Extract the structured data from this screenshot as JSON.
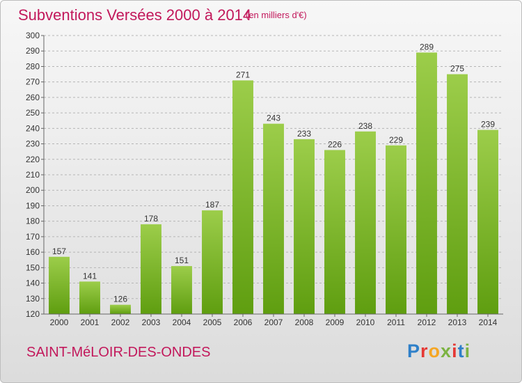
{
  "title": "Subventions Versées 2000 à 2014",
  "subtitle": "(en milliers d'€)",
  "commune": "SAINT-MéLOIR-DES-ONDES",
  "logo": {
    "letters": [
      "P",
      "r",
      "o",
      "x",
      "i",
      "t",
      "i"
    ],
    "colors": [
      "#2f80c9",
      "#e53935",
      "#f5a623",
      "#7cb342",
      "#e53935",
      "#2f80c9",
      "#7cb342"
    ]
  },
  "colors": {
    "bar_top": "#9ccd4a",
    "bar_bottom": "#5f9e10",
    "accent": "#c2185b"
  },
  "chart_data": {
    "type": "bar",
    "categories": [
      "2000",
      "2001",
      "2002",
      "2003",
      "2004",
      "2005",
      "2006",
      "2007",
      "2008",
      "2009",
      "2010",
      "2011",
      "2012",
      "2013",
      "2014"
    ],
    "values": [
      157,
      141,
      126,
      178,
      151,
      187,
      271,
      243,
      233,
      226,
      238,
      229,
      289,
      275,
      239
    ],
    "data_labels": [
      "157",
      "141",
      "126",
      "178",
      "151",
      "187",
      "271",
      "243",
      "233",
      "226",
      "238",
      "229",
      "289",
      "275",
      "239"
    ],
    "yticks": [
      120,
      130,
      140,
      150,
      160,
      170,
      180,
      190,
      200,
      210,
      220,
      230,
      240,
      250,
      260,
      270,
      280,
      290,
      300
    ],
    "ylim": [
      120,
      300
    ],
    "grid": true,
    "title": "Subventions Versées 2000 à 2014",
    "xlabel": "",
    "ylabel": ""
  }
}
